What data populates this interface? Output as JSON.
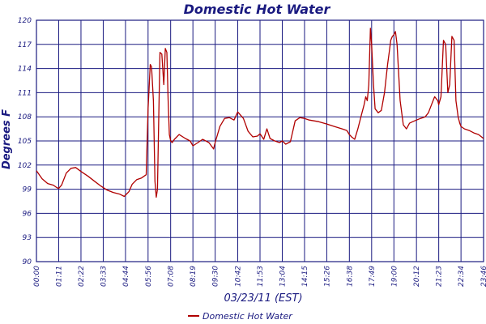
{
  "chart_data": {
    "type": "line",
    "title": "Domestic Hot Water",
    "xlabel": "03/23/11 (EST)",
    "ylabel": "Degrees F",
    "x_unit": "time of day (HH:MM)",
    "xlim": [
      "00:00",
      "23:46"
    ],
    "ylim": [
      90,
      120
    ],
    "x_ticks": [
      "00:00",
      "01:11",
      "02:22",
      "03:33",
      "04:44",
      "05:56",
      "07:08",
      "08:19",
      "09:30",
      "10:42",
      "11:53",
      "13:04",
      "14:15",
      "15:26",
      "16:38",
      "17:49",
      "19:00",
      "20:12",
      "21:23",
      "22:34",
      "23:46"
    ],
    "y_ticks": [
      90,
      93,
      96,
      99,
      102,
      105,
      108,
      111,
      114,
      117,
      120
    ],
    "grid": true,
    "legend": "bottom-left",
    "series": [
      {
        "name": "Domestic Hot Water",
        "color": "#b00000",
        "x": [
          "00:00",
          "00:18",
          "00:36",
          "00:54",
          "01:05",
          "01:11",
          "01:20",
          "01:35",
          "01:50",
          "02:05",
          "02:22",
          "02:45",
          "03:05",
          "03:25",
          "03:45",
          "04:05",
          "04:25",
          "04:40",
          "04:55",
          "05:05",
          "05:20",
          "05:35",
          "05:50",
          "05:56",
          "06:03",
          "06:07",
          "06:13",
          "06:18",
          "06:22",
          "06:26",
          "06:30",
          "06:34",
          "06:40",
          "06:46",
          "06:51",
          "06:56",
          "07:00",
          "07:04",
          "07:08",
          "07:13",
          "07:20",
          "07:35",
          "07:55",
          "08:10",
          "08:19",
          "08:35",
          "08:50",
          "09:10",
          "09:25",
          "09:30",
          "09:45",
          "10:00",
          "10:15",
          "10:30",
          "10:42",
          "11:00",
          "11:15",
          "11:30",
          "11:45",
          "11:53",
          "12:05",
          "12:15",
          "12:25",
          "12:40",
          "12:55",
          "13:04",
          "13:15",
          "13:30",
          "13:45",
          "14:00",
          "14:15",
          "14:30",
          "15:00",
          "15:26",
          "15:50",
          "16:15",
          "16:30",
          "16:38",
          "16:45",
          "16:55",
          "17:05",
          "17:15",
          "17:25",
          "17:30",
          "17:35",
          "17:40",
          "17:45",
          "17:49",
          "17:55",
          "18:00",
          "18:10",
          "18:20",
          "18:30",
          "18:40",
          "18:45",
          "18:50",
          "18:55",
          "19:00",
          "19:05",
          "19:10",
          "19:20",
          "19:30",
          "19:40",
          "19:50",
          "20:00",
          "20:12",
          "20:25",
          "20:40",
          "20:50",
          "21:00",
          "21:10",
          "21:20",
          "21:23",
          "21:30",
          "21:38",
          "21:45",
          "21:52",
          "21:58",
          "22:05",
          "22:12",
          "22:18",
          "22:25",
          "22:30",
          "22:34",
          "22:45",
          "23:00",
          "23:15",
          "23:30",
          "23:46"
        ],
        "values": [
          101.3,
          100.3,
          99.7,
          99.5,
          99.2,
          99.1,
          99.5,
          101.0,
          101.6,
          101.7,
          101.2,
          100.6,
          100.0,
          99.4,
          98.9,
          98.6,
          98.4,
          98.1,
          98.7,
          99.6,
          100.2,
          100.4,
          100.8,
          109.0,
          114.5,
          114.2,
          110.0,
          100.0,
          98.0,
          99.0,
          108.0,
          116.0,
          115.8,
          112.0,
          116.5,
          116.0,
          110.0,
          105.8,
          105.0,
          104.8,
          105.2,
          105.8,
          105.3,
          105.0,
          104.4,
          104.8,
          105.2,
          104.8,
          104.0,
          104.8,
          106.8,
          107.8,
          107.9,
          107.6,
          108.6,
          107.8,
          106.2,
          105.5,
          105.6,
          105.9,
          105.2,
          106.5,
          105.3,
          105.0,
          104.8,
          105.0,
          104.6,
          104.9,
          107.5,
          107.9,
          107.8,
          107.6,
          107.4,
          107.1,
          106.8,
          106.5,
          106.3,
          105.8,
          105.5,
          105.2,
          106.5,
          108.0,
          109.5,
          110.5,
          110.0,
          112.0,
          119.0,
          117.0,
          112.0,
          109.0,
          108.5,
          108.8,
          111.0,
          114.5,
          116.0,
          117.5,
          118.0,
          118.2,
          118.6,
          117.0,
          110.0,
          107.0,
          106.5,
          107.2,
          107.4,
          107.6,
          107.8,
          108.0,
          108.5,
          109.5,
          110.5,
          110.0,
          109.5,
          110.5,
          117.5,
          117.0,
          111.0,
          112.0,
          118.0,
          117.5,
          110.0,
          108.0,
          107.2,
          106.8,
          106.5,
          106.3,
          106.0,
          105.8,
          105.3
        ]
      }
    ]
  }
}
